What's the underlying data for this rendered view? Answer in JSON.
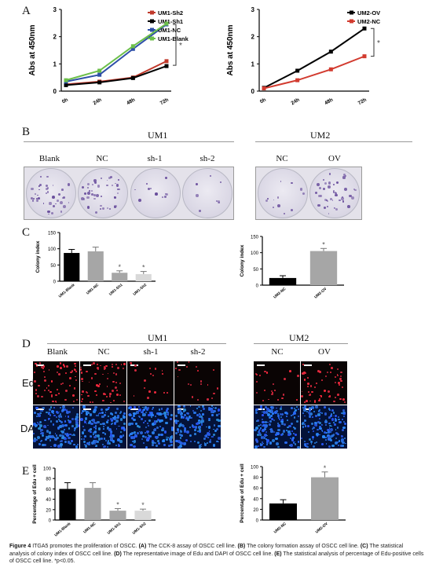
{
  "panels": {
    "A": "A",
    "B": "B",
    "C": "C",
    "D": "D",
    "E": "E"
  },
  "group_titles": {
    "um1": "UM1",
    "um2": "UM2"
  },
  "colony_columns": {
    "um1": [
      "Blank",
      "NC",
      "sh-1",
      "sh-2"
    ],
    "um2": [
      "NC",
      "OV"
    ]
  },
  "edu_columns": {
    "um1": [
      "Blank",
      "NC",
      "sh-1",
      "sh-2"
    ],
    "um2": [
      "NC",
      "OV"
    ]
  },
  "row_labels": {
    "edu": "Edu",
    "dapi": "DAPI"
  },
  "colors": {
    "sh2": "#c0392b",
    "sh1": "#000000",
    "nc_blue": "#2e4fa8",
    "blank_green": "#6cbf4a",
    "ov": "#000000",
    "nc_red": "#d23b2f",
    "bar_black": "#000000",
    "bar_gray": "#a6a6a6",
    "bar_light": "#d9d9d9"
  },
  "chart_data": [
    {
      "type": "line",
      "panel": "A-left",
      "x": [
        "0h",
        "24h",
        "48h",
        "72h"
      ],
      "ylabel": "Abs at 450nm",
      "ylim": [
        0,
        3
      ],
      "yticks": [
        "0",
        "1",
        "2",
        "3"
      ],
      "series": [
        {
          "name": "UM1-Sh2",
          "values": [
            0.25,
            0.35,
            0.5,
            1.1
          ]
        },
        {
          "name": "UM1-Sh1",
          "values": [
            0.22,
            0.32,
            0.48,
            0.92
          ]
        },
        {
          "name": "UM1-NC",
          "values": [
            0.35,
            0.6,
            1.55,
            2.45
          ]
        },
        {
          "name": "UM1-Blank",
          "values": [
            0.4,
            0.75,
            1.65,
            2.48
          ]
        }
      ],
      "annotation": "*"
    },
    {
      "type": "line",
      "panel": "A-right",
      "x": [
        "0h",
        "24h",
        "48h",
        "72h"
      ],
      "ylabel": "Abs at 450nm",
      "ylim": [
        0,
        3
      ],
      "yticks": [
        "0",
        "1",
        "2",
        "3"
      ],
      "series": [
        {
          "name": "UM2-OV",
          "values": [
            0.12,
            0.75,
            1.45,
            2.3
          ]
        },
        {
          "name": "UM2-NC",
          "values": [
            0.1,
            0.4,
            0.8,
            1.28
          ]
        }
      ],
      "annotation": "*"
    },
    {
      "type": "bar",
      "panel": "C-left",
      "categories": [
        "UM1-Blank",
        "UM1-NC",
        "UM1-Sh1",
        "UM1-Sh2"
      ],
      "values": [
        87,
        92,
        26,
        22
      ],
      "errors": [
        11,
        13,
        6,
        8
      ],
      "ylabel": "Colony index",
      "ylim": [
        0,
        150
      ],
      "yticks": [
        "0",
        "50",
        "100",
        "150"
      ],
      "annotations": [
        "",
        "",
        "*",
        "*"
      ]
    },
    {
      "type": "bar",
      "panel": "C-right",
      "categories": [
        "UM2-NC",
        "UM2-OV"
      ],
      "values": [
        22,
        105
      ],
      "errors": [
        7,
        8
      ],
      "ylabel": "Colony index",
      "ylim": [
        0,
        150
      ],
      "yticks": [
        "0",
        "50",
        "100",
        "150"
      ],
      "annotations": [
        "",
        "*"
      ]
    },
    {
      "type": "bar",
      "panel": "E-left",
      "categories": [
        "UM1-Blank",
        "UM1-NC",
        "UM1-Sh1",
        "UM1-Sh2"
      ],
      "values": [
        60,
        62,
        18,
        18
      ],
      "errors": [
        12,
        10,
        4,
        3
      ],
      "ylabel": "Percentage of Edu + cell",
      "ylim": [
        0,
        100
      ],
      "yticks": [
        "0",
        "20",
        "40",
        "60",
        "80",
        "100"
      ],
      "annotations": [
        "",
        "",
        "*",
        "*"
      ]
    },
    {
      "type": "bar",
      "panel": "E-right",
      "categories": [
        "UM2-NC",
        "UM2-OV"
      ],
      "values": [
        31,
        80
      ],
      "errors": [
        7,
        10
      ],
      "ylabel": "Percentage of Edu + cell",
      "ylim": [
        0,
        100
      ],
      "yticks": [
        "0",
        "20",
        "40",
        "60",
        "80",
        "100"
      ],
      "annotations": [
        "",
        "*"
      ]
    }
  ],
  "caption": {
    "fig": "Figure 4",
    "title": "ITGA5 promotes the proliferation of OSCC.",
    "a_label": "(A)",
    "a_text": "The CCK-8 assay of OSCC cell line.",
    "b_label": "(B)",
    "b_text": "The colony formation assay of OSCC cell line.",
    "c_label": "(C)",
    "c_text": "The statistical analysis of colony index of OSCC cell line.",
    "d_label": "(D)",
    "d_text": "The representative image of Edu and DAPI of OSCC cell line.",
    "e_label": "(E)",
    "e_text": "The statistical analysis of percentage of Edu-positive cells of OSCC cell line.",
    "sig": "*p<0.05."
  }
}
